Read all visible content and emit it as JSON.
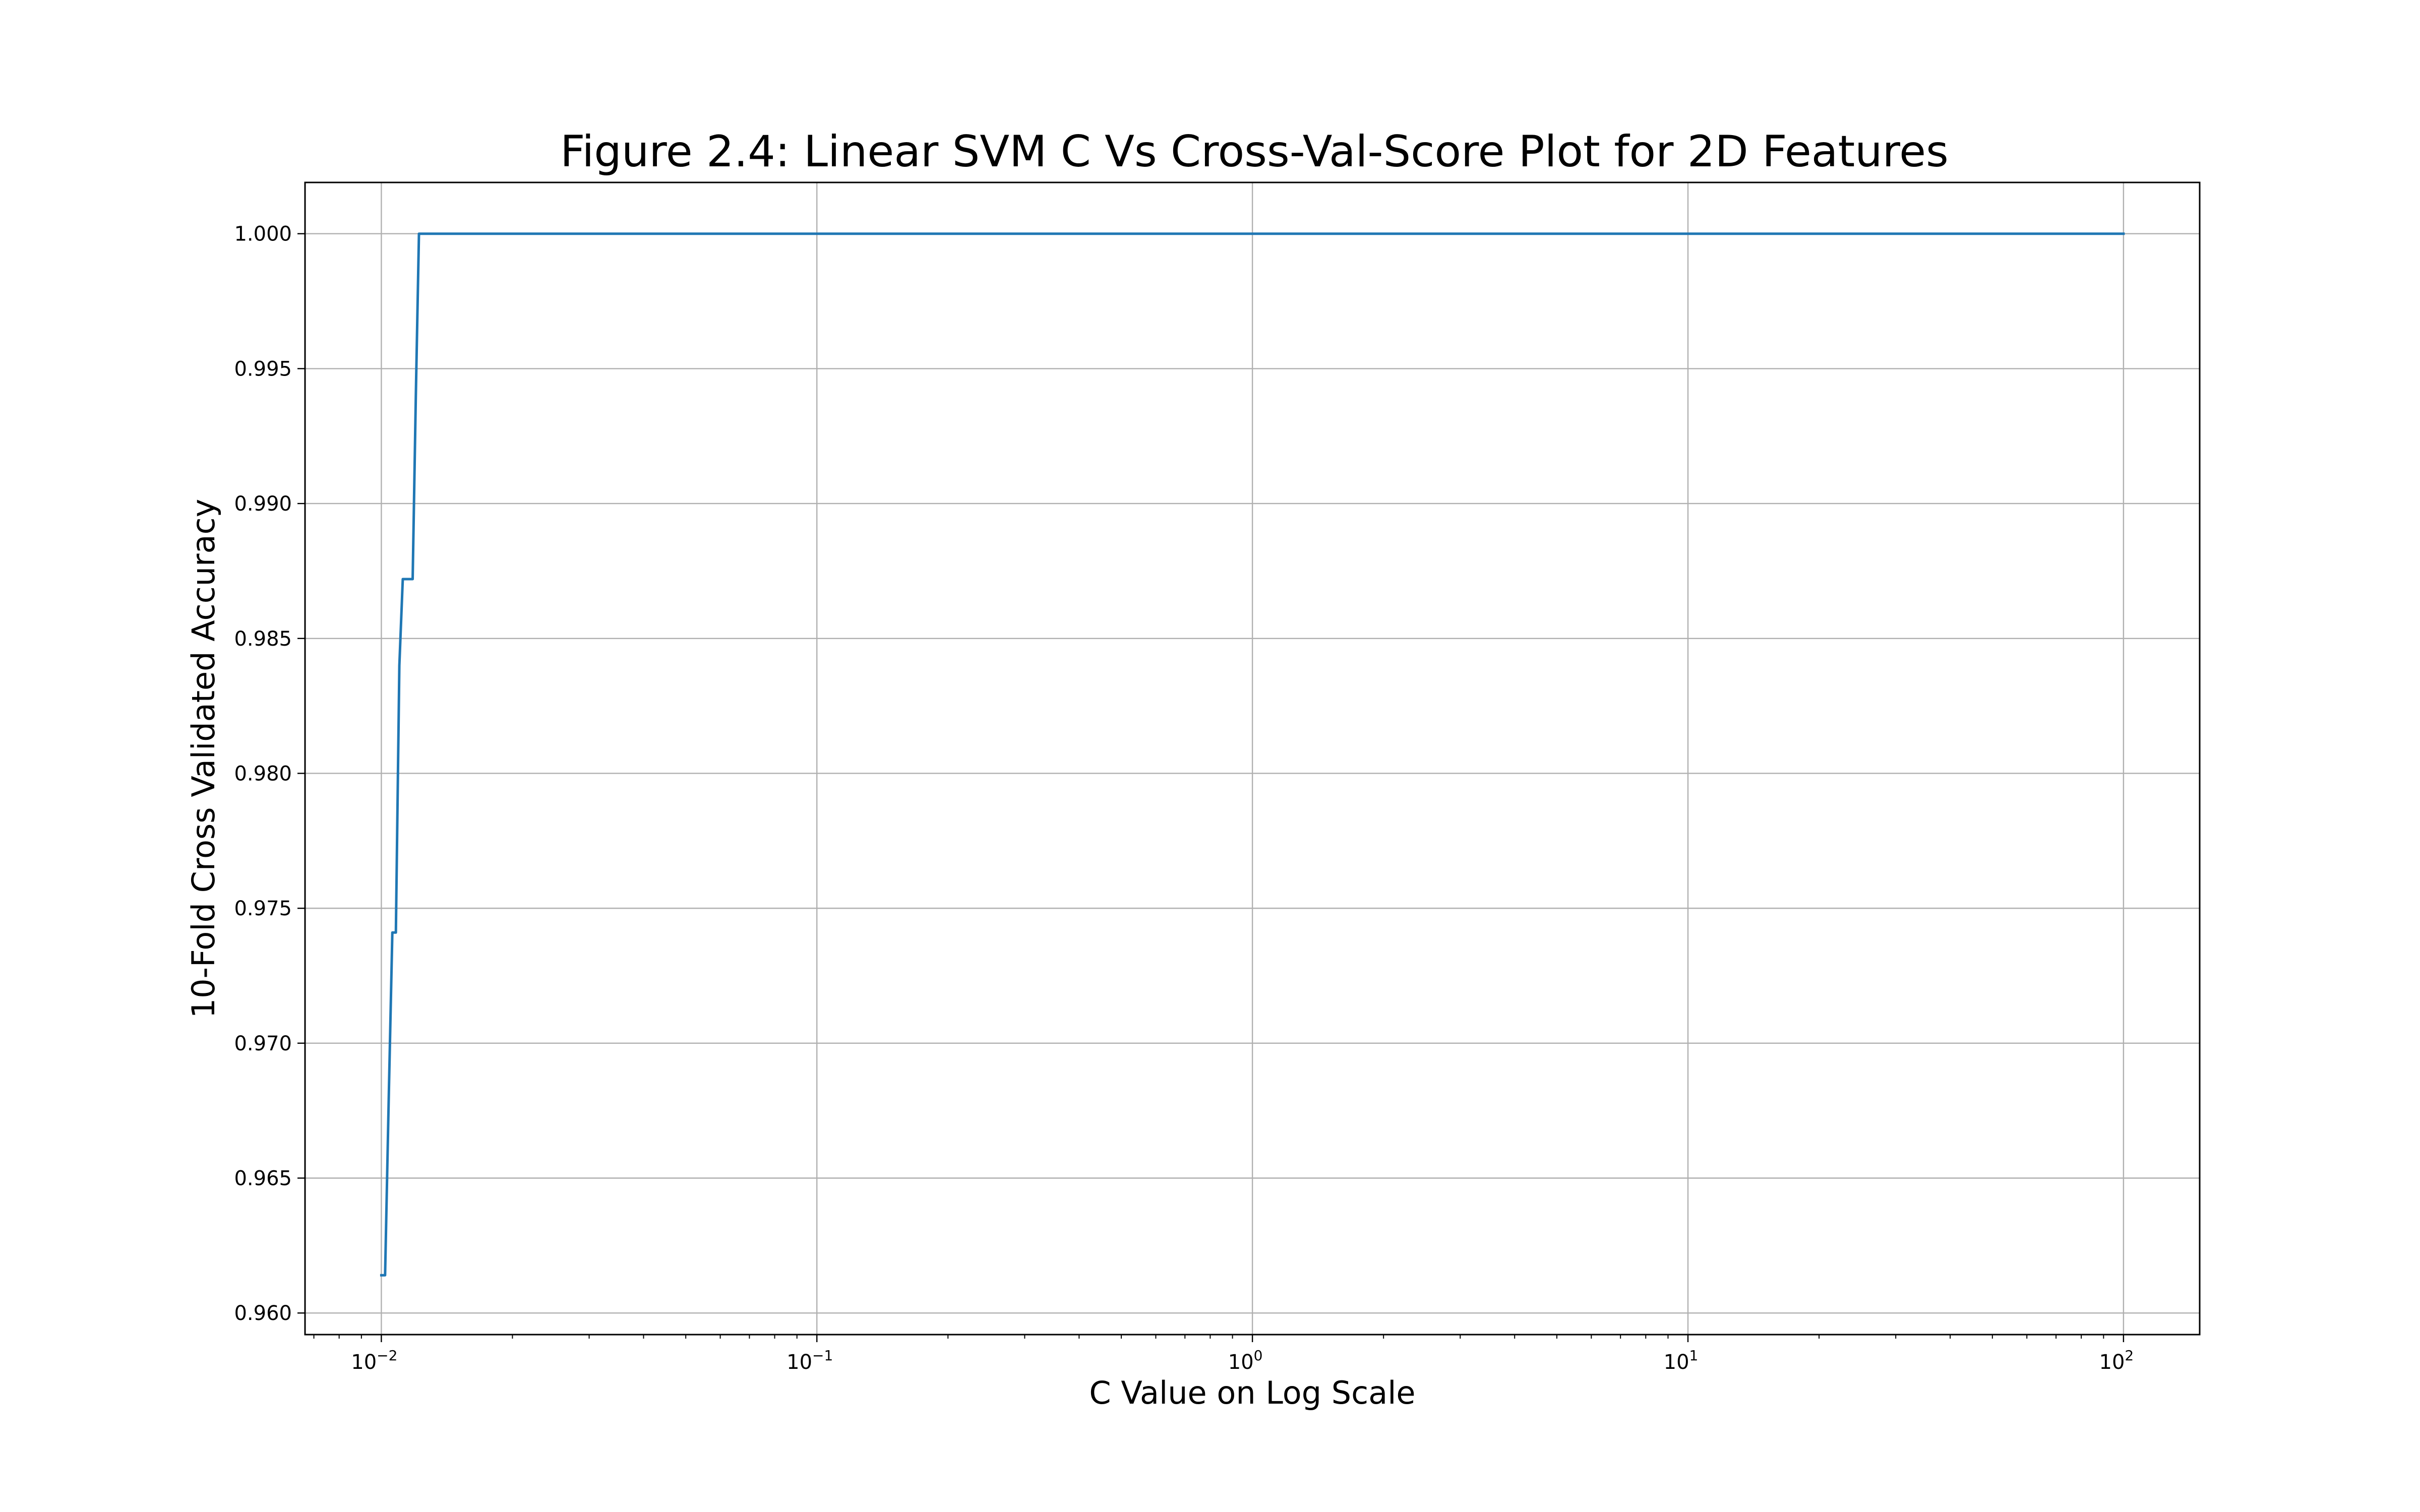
{
  "chart_data": {
    "type": "line",
    "title": "Figure 2.4: Linear SVM C Vs Cross-Val-Score Plot for 2D Features",
    "xlabel": "C Value on Log Scale",
    "ylabel": "10-Fold Cross Validated Accuracy",
    "xscale": "log",
    "xlim": [
      0.00668,
      149.6
    ],
    "ylim": [
      0.9592,
      1.0019
    ],
    "grid": true,
    "line_color": "#1f77b4",
    "x_ticks": [
      {
        "value": 0.01,
        "base": "10",
        "exp": "−2"
      },
      {
        "value": 0.1,
        "base": "10",
        "exp": "−1"
      },
      {
        "value": 1,
        "base": "10",
        "exp": "0"
      },
      {
        "value": 10,
        "base": "10",
        "exp": "1"
      },
      {
        "value": 100,
        "base": "10",
        "exp": "2"
      }
    ],
    "y_ticks": [
      {
        "value": 0.96,
        "label": "0.960"
      },
      {
        "value": 0.965,
        "label": "0.965"
      },
      {
        "value": 0.97,
        "label": "0.970"
      },
      {
        "value": 0.975,
        "label": "0.975"
      },
      {
        "value": 0.98,
        "label": "0.980"
      },
      {
        "value": 0.985,
        "label": "0.985"
      },
      {
        "value": 0.99,
        "label": "0.990"
      },
      {
        "value": 0.995,
        "label": "0.995"
      },
      {
        "value": 1.0,
        "label": "1.000"
      }
    ],
    "series": [
      {
        "x": [
          0.01,
          0.0102,
          0.0104,
          0.0106,
          0.0108,
          0.011,
          0.0112,
          0.0114,
          0.0116,
          0.0118,
          0.012,
          0.0122,
          1,
          100
        ],
        "y": [
          0.9614,
          0.9614,
          0.968,
          0.9741,
          0.9741,
          0.984,
          0.9872,
          0.9872,
          0.9872,
          0.9872,
          0.994,
          1.0,
          1.0,
          1.0
        ]
      }
    ]
  }
}
